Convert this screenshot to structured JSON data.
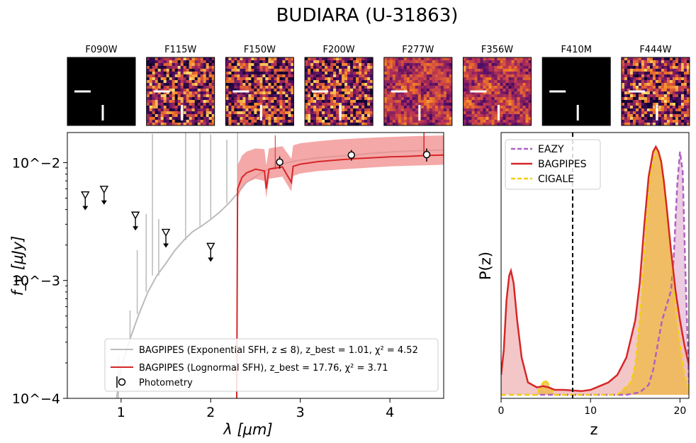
{
  "title": "BUDIARA (U-31863)",
  "cutouts": {
    "filters": [
      {
        "name": "F090W",
        "blank": true,
        "seed": 1
      },
      {
        "name": "F115W",
        "blank": false,
        "seed": 2
      },
      {
        "name": "F150W",
        "blank": false,
        "seed": 3
      },
      {
        "name": "F200W",
        "blank": false,
        "seed": 4
      },
      {
        "name": "F277W",
        "blank": false,
        "seed": 5
      },
      {
        "name": "F356W",
        "blank": false,
        "seed": 6
      },
      {
        "name": "F410M",
        "blank": true,
        "seed": 7
      },
      {
        "name": "F444W",
        "blank": false,
        "seed": 8
      }
    ]
  },
  "chart_data": [
    {
      "type": "line",
      "id": "sed",
      "xlabel": "λ [μm]",
      "ylabel": "f_ν [μJy]",
      "xlim": [
        0.4,
        4.6
      ],
      "ylim": [
        0.0001,
        0.018
      ],
      "yscale": "log",
      "xticks": [
        1,
        2,
        3,
        4
      ],
      "xtick_labels": [
        "1",
        "2",
        "3",
        "4"
      ],
      "yticks": [
        0.0001,
        0.001,
        0.01
      ],
      "ytick_labels": [
        "10^−4",
        "10^−3",
        "10^−2"
      ],
      "series": [
        {
          "name": "BAGPIPES (Exponential SFH, z ≤ 8), z_best = 1.01, χ² = 4.52",
          "color": "#bbbbbb",
          "x": [
            0.95,
            1.0,
            1.1,
            1.2,
            1.3,
            1.4,
            1.5,
            1.6,
            1.7,
            1.8,
            1.9,
            2.0,
            2.1,
            2.2,
            2.3,
            2.4,
            2.6,
            2.8,
            3.0,
            3.2,
            3.4,
            3.6,
            3.8,
            4.0,
            4.2,
            4.4,
            4.6
          ],
          "y": [
            0.0001,
            0.00018,
            0.00032,
            0.00052,
            0.0008,
            0.0011,
            0.0014,
            0.0018,
            0.0022,
            0.0026,
            0.0029,
            0.0033,
            0.0038,
            0.0045,
            0.0055,
            0.0068,
            0.0085,
            0.0098,
            0.0105,
            0.011,
            0.0113,
            0.0116,
            0.012,
            0.0123,
            0.0125,
            0.0127,
            0.0128
          ]
        },
        {
          "name": "BAGPIPES (Lognormal SFH), z_best = 17.76, χ² = 3.71",
          "color": "#d62728",
          "x": [
            2.29,
            2.3,
            2.35,
            2.4,
            2.5,
            2.6,
            2.62,
            2.65,
            2.8,
            2.9,
            2.92,
            3.0,
            3.2,
            3.4,
            3.6,
            3.8,
            4.0,
            4.2,
            4.4,
            4.6
          ],
          "y": [
            0.0001,
            0.006,
            0.0075,
            0.0082,
            0.0088,
            0.0085,
            0.006,
            0.0088,
            0.0092,
            0.0068,
            0.0093,
            0.0097,
            0.0102,
            0.0105,
            0.0108,
            0.011,
            0.0112,
            0.0113,
            0.0115,
            0.0116
          ],
          "band_low": [
            0.0001,
            0.005,
            0.0062,
            0.0068,
            0.0073,
            0.007,
            0.005,
            0.0073,
            0.0076,
            0.0057,
            0.0077,
            0.0081,
            0.0085,
            0.0087,
            0.0089,
            0.0091,
            0.0093,
            0.0094,
            0.0095,
            0.0096
          ],
          "band_high": [
            0.0001,
            0.0095,
            0.0115,
            0.0124,
            0.0132,
            0.013,
            0.0095,
            0.0132,
            0.0138,
            0.0108,
            0.014,
            0.0146,
            0.0152,
            0.0157,
            0.016,
            0.0163,
            0.0165,
            0.0167,
            0.0169,
            0.017
          ]
        }
      ],
      "upper_limits": {
        "x": [
          0.6,
          0.81,
          1.16,
          1.5,
          2.0
        ],
        "y": [
          0.0052,
          0.0058,
          0.0035,
          0.0025,
          0.0019
        ]
      },
      "photometry": {
        "name": "Photometry",
        "x": [
          2.77,
          3.57,
          4.41
        ],
        "y": [
          0.0101,
          0.0116,
          0.0117
        ],
        "err": [
          0.0012,
          0.0012,
          0.0015
        ]
      }
    },
    {
      "type": "line",
      "id": "pz",
      "xlabel": "z",
      "ylabel": "P(z)",
      "xlim": [
        0,
        21
      ],
      "xticks": [
        0,
        10,
        20
      ],
      "xtick_labels": [
        "0",
        "10",
        "20"
      ],
      "vline_x": 8,
      "series": [
        {
          "name": "EAZY",
          "color": "#b061c3",
          "style": "dashed",
          "fill": "#e7bfda",
          "x": [
            0,
            14,
            15.5,
            16.5,
            17.0,
            17.5,
            18.0,
            18.5,
            19.0,
            19.3,
            19.7,
            20.0,
            20.3,
            20.6,
            21.0
          ],
          "y": [
            0,
            0,
            0.01,
            0.04,
            0.1,
            0.2,
            0.3,
            0.36,
            0.42,
            0.55,
            0.85,
            0.98,
            0.9,
            0.5,
            0.05
          ]
        },
        {
          "name": "BAGPIPES",
          "color": "#d62728",
          "style": "solid",
          "fill": "#f0b9b9",
          "x": [
            0,
            0.3,
            0.6,
            0.9,
            1.1,
            1.4,
            1.8,
            2.3,
            3,
            4,
            4.7,
            5.3,
            6,
            7,
            9,
            10,
            11,
            12,
            13,
            14,
            15,
            15.5,
            16,
            16.5,
            17,
            17.3,
            17.6,
            17.9,
            18.2,
            18.5,
            19,
            19.5,
            20,
            20.5,
            21
          ],
          "y": [
            0.08,
            0.18,
            0.38,
            0.48,
            0.5,
            0.45,
            0.3,
            0.15,
            0.05,
            0.03,
            0.035,
            0.03,
            0.02,
            0.02,
            0.015,
            0.02,
            0.035,
            0.05,
            0.08,
            0.15,
            0.3,
            0.45,
            0.68,
            0.88,
            0.98,
            1.0,
            0.98,
            0.94,
            0.86,
            0.76,
            0.58,
            0.42,
            0.3,
            0.2,
            0.12
          ]
        },
        {
          "name": "CIGALE",
          "color": "#f2d014",
          "style": "dashed",
          "fill": "#efb94b",
          "x": [
            0,
            4,
            4.5,
            5,
            5.5,
            6,
            13,
            14.5,
            15,
            15.5,
            16,
            16.3,
            16.6,
            17,
            17.3,
            17.6,
            18,
            18.3,
            18.6,
            19,
            19.3,
            19.6,
            20,
            20.5,
            21
          ],
          "y": [
            0,
            0,
            0.04,
            0.06,
            0.03,
            0,
            0,
            0.05,
            0.12,
            0.3,
            0.55,
            0.72,
            0.86,
            0.94,
            0.99,
            0.97,
            0.9,
            0.8,
            0.7,
            0.58,
            0.45,
            0.32,
            0.2,
            0.08,
            0.02
          ]
        }
      ]
    }
  ]
}
